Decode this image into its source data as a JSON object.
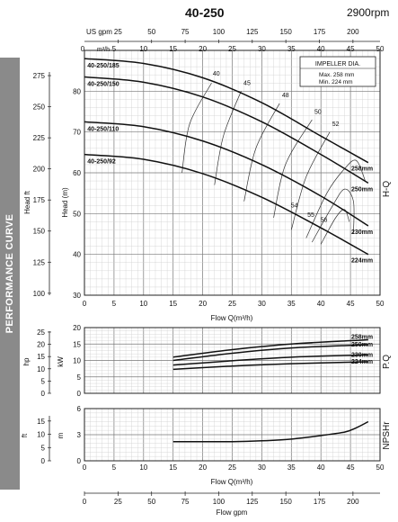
{
  "title": "40-250",
  "speed": "2900rpm",
  "side_label": "PERFORMANCE CURVE",
  "top_axis": {
    "us_label": "US gpm",
    "us_ticks": [
      "0",
      "25",
      "50",
      "75",
      "100",
      "125",
      "150",
      "175",
      "200"
    ],
    "m3h_label": "m³/h",
    "m3h_ticks": [
      "0",
      "5",
      "10",
      "15",
      "20",
      "25",
      "30",
      "35",
      "40",
      "45",
      "50"
    ]
  },
  "legend": {
    "title": "IMPELLER DIA.",
    "max": "Max.  258 mm",
    "min": "Min.   224 mm"
  },
  "chart_data": [
    {
      "type": "line",
      "name": "H-Q",
      "xlabel": "Flow Q(m³/h)",
      "ylabel": "Head (m)",
      "ylabel_secondary": "Head ft",
      "right_label": "H-Q",
      "xlim": [
        0,
        50
      ],
      "ylim": [
        30,
        90
      ],
      "x_ticks": [
        "0",
        "5",
        "10",
        "15",
        "20",
        "25",
        "30",
        "35",
        "40",
        "45",
        "50"
      ],
      "y_ticks": [
        "30",
        "40",
        "50",
        "60",
        "70",
        "80"
      ],
      "y_ft_ticks": [
        "100",
        "125",
        "150",
        "175",
        "200",
        "225",
        "250",
        "275"
      ],
      "grid": true,
      "series": [
        {
          "name": "40-250/185",
          "end_label": "258mm",
          "x": [
            0,
            10,
            20,
            30,
            40,
            48
          ],
          "y": [
            88,
            86.8,
            83.3,
            77.2,
            69,
            62.5
          ]
        },
        {
          "name": "40-250/150",
          "end_label": "250mm",
          "x": [
            0,
            10,
            20,
            30,
            40,
            48
          ],
          "y": [
            83.5,
            82.2,
            78.6,
            72.5,
            64.5,
            57.5
          ]
        },
        {
          "name": "40-250/110",
          "end_label": "230mm",
          "x": [
            0,
            10,
            20,
            30,
            40,
            48
          ],
          "y": [
            72.5,
            71.3,
            67.8,
            62,
            54.3,
            47
          ]
        },
        {
          "name": "40-250/92",
          "end_label": "224mm",
          "x": [
            0,
            10,
            20,
            30,
            40,
            48
          ],
          "y": [
            64.5,
            63.3,
            59.8,
            54,
            46.5,
            40
          ]
        }
      ],
      "efficiency_labels": [
        "40",
        "45",
        "48",
        "50",
        "52",
        "54",
        "55",
        "56"
      ]
    },
    {
      "type": "line",
      "name": "P-Q",
      "xlabel": "",
      "ylabel": "kW",
      "ylabel_secondary": "hp",
      "right_label": "P.Q",
      "xlim": [
        0,
        50
      ],
      "ylim": [
        0,
        20
      ],
      "y_ticks": [
        "0",
        "5",
        "10",
        "15",
        "20"
      ],
      "y_hp_ticks": [
        "0",
        "5",
        "10",
        "15",
        "20",
        "25"
      ],
      "grid": true,
      "series": [
        {
          "name": "258mm",
          "x": [
            15,
            25,
            35,
            48
          ],
          "y": [
            11,
            13.3,
            15,
            16.3
          ]
        },
        {
          "name": "250mm",
          "x": [
            15,
            25,
            35,
            48
          ],
          "y": [
            10,
            12.2,
            13.8,
            14.8
          ]
        },
        {
          "name": "230mm",
          "x": [
            15,
            25,
            35,
            48
          ],
          "y": [
            8.6,
            9.9,
            11,
            11.7
          ]
        },
        {
          "name": "224mm",
          "x": [
            15,
            25,
            35,
            48
          ],
          "y": [
            7.3,
            8.3,
            9,
            9.6
          ]
        }
      ]
    },
    {
      "type": "line",
      "name": "NPSHr",
      "xlabel": "Flow Q(m³/h)",
      "ylabel": "m",
      "ylabel_secondary": "ft",
      "right_label": "NPSHr",
      "xlim": [
        0,
        50
      ],
      "ylim": [
        0,
        6
      ],
      "y_ticks": [
        "0",
        "3",
        "6"
      ],
      "y_ft_ticks": [
        "0",
        "5",
        "10",
        "15"
      ],
      "grid": true,
      "series": [
        {
          "name": "",
          "x": [
            15,
            20,
            25,
            30,
            35,
            40,
            44,
            46,
            48
          ],
          "y": [
            2.2,
            2.2,
            2.2,
            2.3,
            2.5,
            2.9,
            3.3,
            3.8,
            4.5
          ]
        }
      ]
    }
  ],
  "bottom_axis": {
    "label": "Flow gpm",
    "ticks": [
      "0",
      "25",
      "50",
      "75",
      "100",
      "125",
      "150",
      "175",
      "200"
    ]
  }
}
